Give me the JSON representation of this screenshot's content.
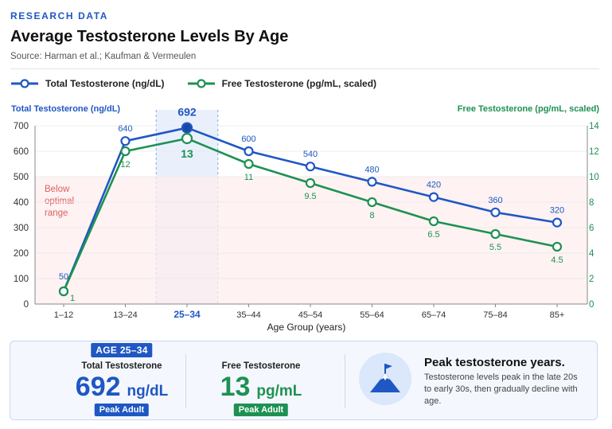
{
  "header": {
    "eyebrow": "RESEARCH DATA",
    "title": "Average Testosterone Levels By Age",
    "source": "Source: Harman et al.; Kaufman & Vermeulen"
  },
  "colors": {
    "total": "#1f57c3",
    "free": "#1e9152",
    "band": "#fdeeee",
    "bandLine": "#f2b2b2",
    "bandText": "#e06060",
    "highlight": "#e9f0fc"
  },
  "chart_data": {
    "type": "line",
    "categories": [
      "1–12",
      "13–24",
      "25–34",
      "35–44",
      "45–54",
      "55–64",
      "65–74",
      "75–84",
      "85+"
    ],
    "xlabel": "Age Group (years)",
    "highlight_category": "25–34",
    "band": {
      "label_lines": [
        "Below",
        "optimal",
        "range"
      ],
      "from": 0,
      "to": 500
    },
    "y_left": {
      "label": "Total Testosterone (ng/dL)",
      "min": 0,
      "max": 700,
      "ticks": [
        0,
        100,
        200,
        300,
        400,
        500,
        600,
        700
      ]
    },
    "y_right": {
      "label": "Free Testosterone (pg/mL, scaled)",
      "min": 0,
      "max": 14,
      "ticks": [
        0,
        2,
        4,
        6,
        8,
        10,
        12,
        14
      ]
    },
    "series": [
      {
        "name": "Total Testosterone (ng/dL)",
        "axis": "left",
        "values": [
          50,
          640,
          692,
          600,
          540,
          480,
          420,
          360,
          320
        ],
        "labels": [
          "50",
          "640",
          "692",
          "600",
          "540",
          "480",
          "420",
          "360",
          "320"
        ]
      },
      {
        "name": "Free Testosterone (pg/mL, scaled)",
        "axis": "right",
        "values": [
          1,
          12,
          13,
          11,
          9.5,
          8,
          6.5,
          5.5,
          4.5
        ],
        "labels": [
          "1",
          "12",
          "13",
          "11",
          "9.5",
          "8",
          "6.5",
          "5.5",
          "4.5"
        ]
      }
    ]
  },
  "panel": {
    "age_badge": "AGE 25–34",
    "total": {
      "label": "Total Testosterone",
      "value": "692",
      "unit": "ng/dL",
      "pill": "Peak Adult"
    },
    "free": {
      "label": "Free Testosterone",
      "value": "13",
      "unit": "pg/mL",
      "pill": "Peak Adult"
    },
    "peak_title": "Peak testosterone years.",
    "peak_desc": "Testosterone levels peak in the late 20s to early 30s, then gradually decline with age.",
    "icon": "mountain-flag-icon"
  }
}
